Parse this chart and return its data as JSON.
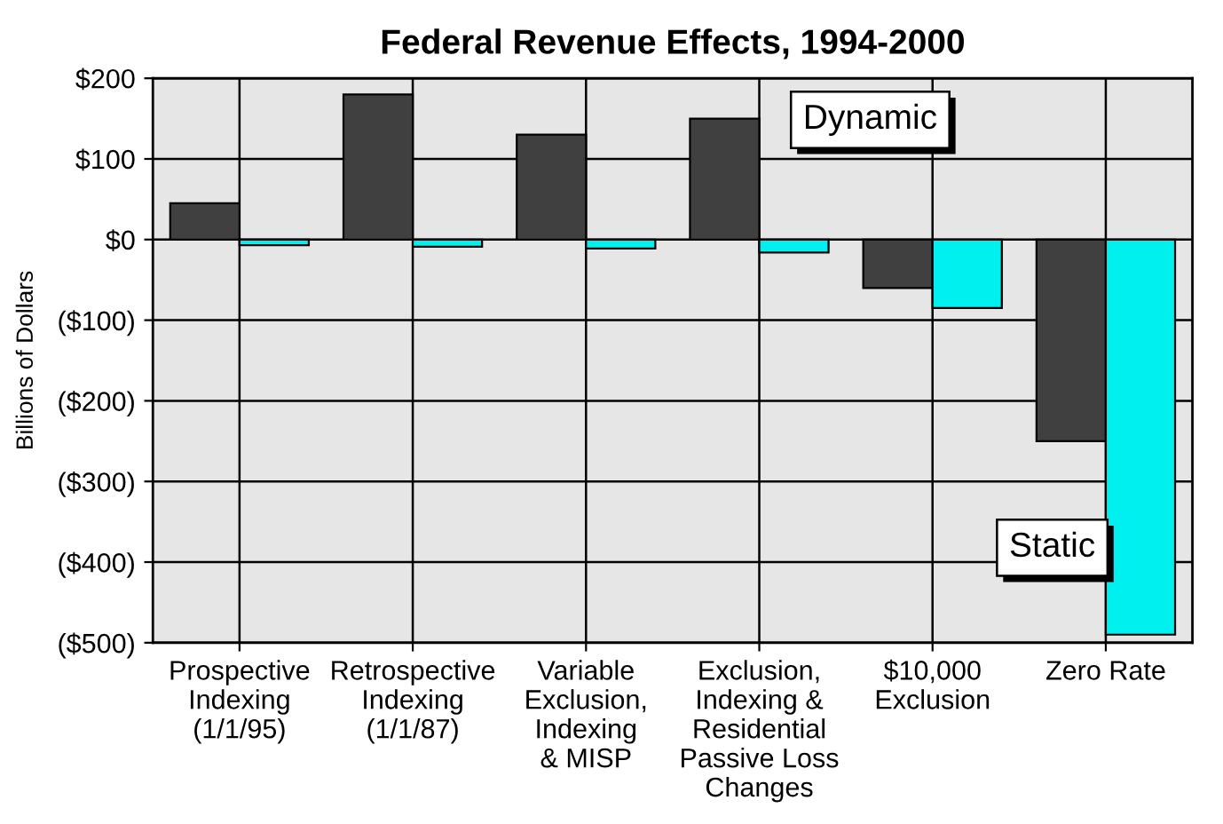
{
  "chart_data": {
    "type": "bar",
    "title": "Federal Revenue Effects, 1994-2000",
    "ylabel": "Billions of Dollars",
    "categories": [
      "Prospective\nIndexing\n(1/1/95)",
      "Retrospective\nIndexing\n(1/1/87)",
      "Variable\nExclusion,\nIndexing\n& MISP",
      "Exclusion,\nIndexing &\nResidential\nPassive Loss\nChanges",
      "$10,000\nExclusion",
      "Zero Rate"
    ],
    "series": [
      {
        "name": "Dynamic",
        "color": "#404040",
        "values": [
          45,
          180,
          130,
          150,
          -60,
          -250
        ]
      },
      {
        "name": "Static",
        "color": "#00f0f0",
        "values": [
          -7,
          -9,
          -11,
          -16,
          -85,
          -490
        ]
      }
    ],
    "ylim": [
      -500,
      200
    ],
    "yticks": [
      {
        "value": 200,
        "label": "$200"
      },
      {
        "value": 100,
        "label": "$100"
      },
      {
        "value": 0,
        "label": "$0"
      },
      {
        "value": -100,
        "label": "($100)"
      },
      {
        "value": -200,
        "label": "($200)"
      },
      {
        "value": -300,
        "label": "($300)"
      },
      {
        "value": -400,
        "label": "($400)"
      },
      {
        "value": -500,
        "label": "($500)"
      }
    ],
    "grid": true
  }
}
